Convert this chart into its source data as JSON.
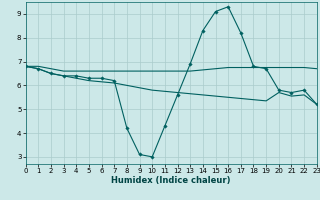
{
  "xlabel": "Humidex (Indice chaleur)",
  "ylabel": "",
  "bg_color": "#cce8e8",
  "grid_color": "#aacccc",
  "line_color": "#006060",
  "x_ticks": [
    0,
    1,
    2,
    3,
    4,
    5,
    6,
    7,
    8,
    9,
    10,
    11,
    12,
    13,
    14,
    15,
    16,
    17,
    18,
    19,
    20,
    21,
    22,
    23
  ],
  "y_ticks": [
    3,
    4,
    5,
    6,
    7,
    8,
    9
  ],
  "xlim": [
    0,
    23
  ],
  "ylim": [
    2.7,
    9.5
  ],
  "series1": {
    "x": [
      0,
      1,
      2,
      3,
      4,
      5,
      6,
      7,
      8,
      9,
      10,
      11,
      12,
      13,
      14,
      15,
      16,
      17,
      18,
      19,
      20,
      21,
      22,
      23
    ],
    "y": [
      6.8,
      6.7,
      6.5,
      6.4,
      6.4,
      6.3,
      6.3,
      6.2,
      4.2,
      3.1,
      3.0,
      4.3,
      5.6,
      6.9,
      8.3,
      9.1,
      9.3,
      8.2,
      6.8,
      6.7,
      5.8,
      5.7,
      5.8,
      5.2
    ]
  },
  "series2": {
    "x": [
      0,
      1,
      2,
      3,
      4,
      5,
      6,
      7,
      8,
      9,
      10,
      11,
      12,
      13,
      14,
      15,
      16,
      17,
      18,
      19,
      20,
      21,
      22,
      23
    ],
    "y": [
      6.8,
      6.8,
      6.7,
      6.6,
      6.6,
      6.6,
      6.6,
      6.6,
      6.6,
      6.6,
      6.6,
      6.6,
      6.6,
      6.6,
      6.65,
      6.7,
      6.75,
      6.75,
      6.75,
      6.75,
      6.75,
      6.75,
      6.75,
      6.7
    ]
  },
  "series3": {
    "x": [
      0,
      1,
      2,
      3,
      4,
      5,
      6,
      7,
      8,
      9,
      10,
      11,
      12,
      13,
      14,
      15,
      16,
      17,
      18,
      19,
      20,
      21,
      22,
      23
    ],
    "y": [
      6.8,
      6.7,
      6.5,
      6.4,
      6.3,
      6.2,
      6.15,
      6.1,
      6.0,
      5.9,
      5.8,
      5.75,
      5.7,
      5.65,
      5.6,
      5.55,
      5.5,
      5.45,
      5.4,
      5.35,
      5.7,
      5.55,
      5.6,
      5.2
    ]
  }
}
